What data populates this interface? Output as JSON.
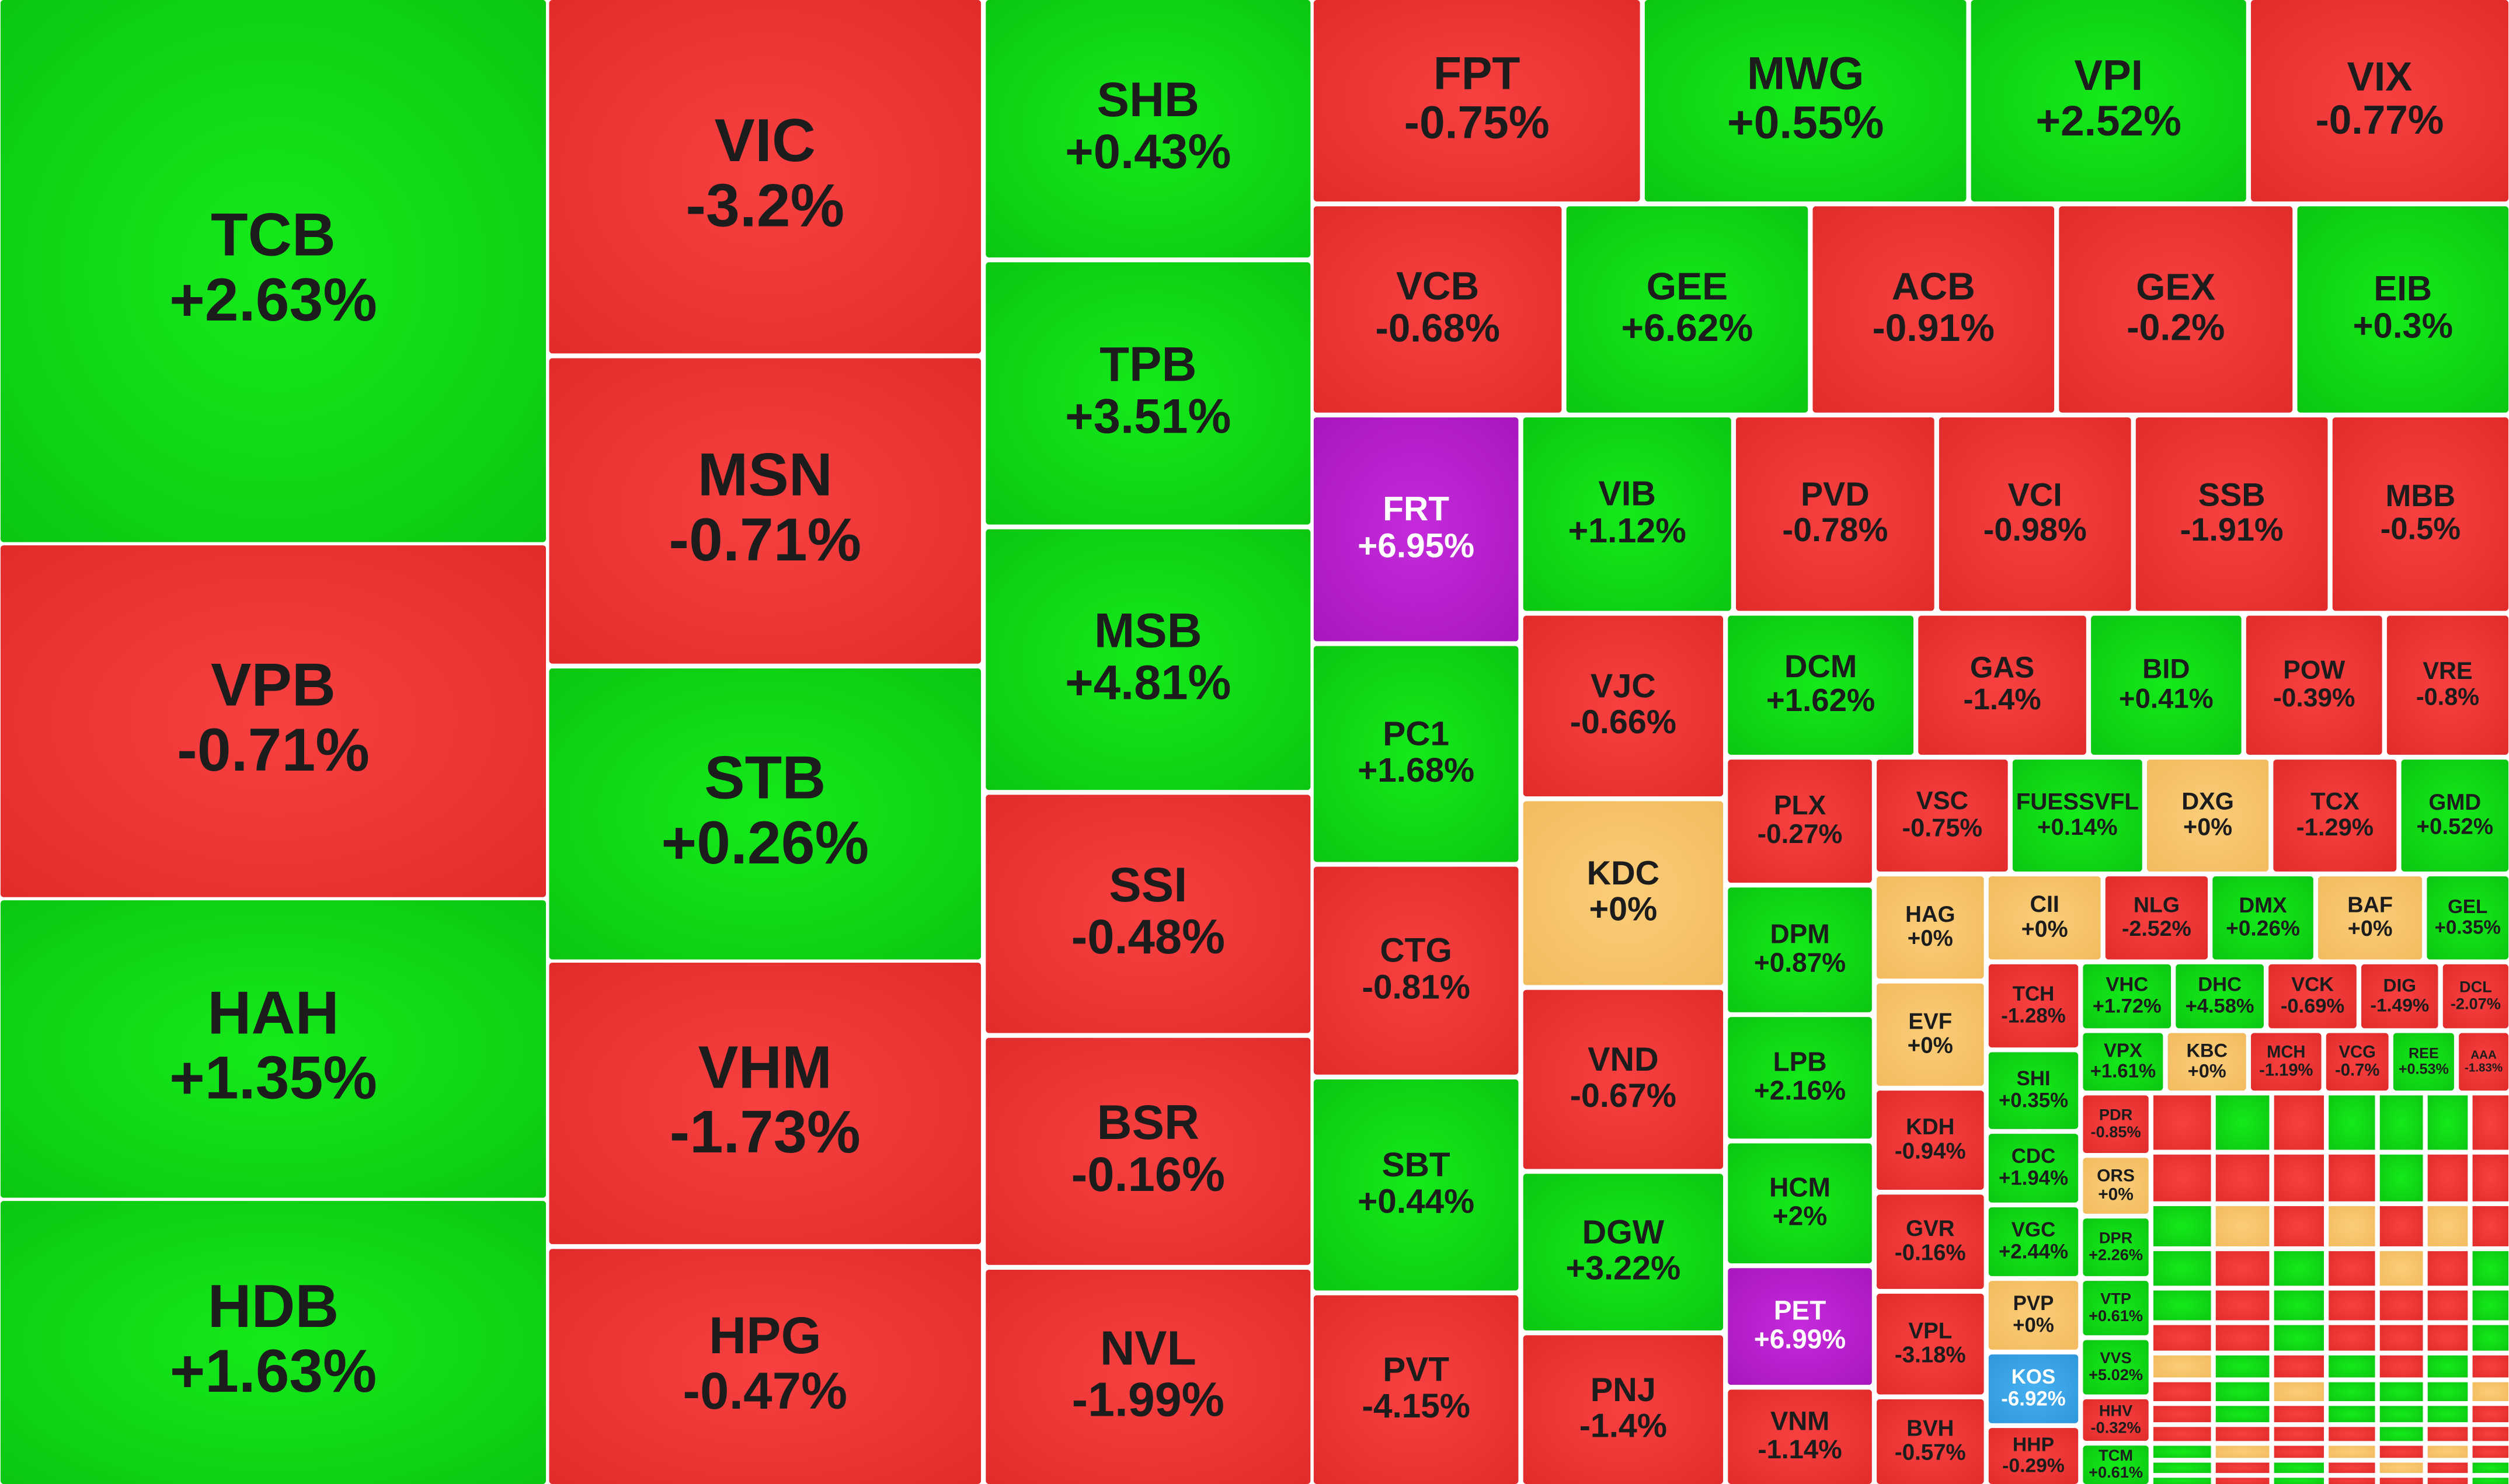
{
  "tiles": [
    {
      "ticker": "TCB",
      "change": "+2.63%",
      "color": "green"
    },
    {
      "ticker": "VPB",
      "change": "-0.71%",
      "color": "red"
    },
    {
      "ticker": "HAH",
      "change": "+1.35%",
      "color": "green"
    },
    {
      "ticker": "HDB",
      "change": "+1.63%",
      "color": "green"
    },
    {
      "ticker": "VIC",
      "change": "-3.2%",
      "color": "red"
    },
    {
      "ticker": "MSN",
      "change": "-0.71%",
      "color": "red"
    },
    {
      "ticker": "STB",
      "change": "+0.26%",
      "color": "green"
    },
    {
      "ticker": "VHM",
      "change": "-1.73%",
      "color": "red"
    },
    {
      "ticker": "HPG",
      "change": "-0.47%",
      "color": "red"
    },
    {
      "ticker": "SHB",
      "change": "+0.43%",
      "color": "green"
    },
    {
      "ticker": "TPB",
      "change": "+3.51%",
      "color": "green"
    },
    {
      "ticker": "MSB",
      "change": "+4.81%",
      "color": "green"
    },
    {
      "ticker": "SSI",
      "change": "-0.48%",
      "color": "red"
    },
    {
      "ticker": "BSR",
      "change": "-0.16%",
      "color": "red"
    },
    {
      "ticker": "NVL",
      "change": "-1.99%",
      "color": "red"
    },
    {
      "ticker": "FPT",
      "change": "-0.75%",
      "color": "red"
    },
    {
      "ticker": "MWG",
      "change": "+0.55%",
      "color": "green"
    },
    {
      "ticker": "VPI",
      "change": "+2.52%",
      "color": "green"
    },
    {
      "ticker": "VIX",
      "change": "-0.77%",
      "color": "red"
    },
    {
      "ticker": "VCB",
      "change": "-0.68%",
      "color": "red"
    },
    {
      "ticker": "GEE",
      "change": "+6.62%",
      "color": "green"
    },
    {
      "ticker": "ACB",
      "change": "-0.91%",
      "color": "red"
    },
    {
      "ticker": "GEX",
      "change": "-0.2%",
      "color": "red"
    },
    {
      "ticker": "EIB",
      "change": "+0.3%",
      "color": "green"
    },
    {
      "ticker": "FRT",
      "change": "+6.95%",
      "color": "purple"
    },
    {
      "ticker": "VIB",
      "change": "+1.12%",
      "color": "green"
    },
    {
      "ticker": "PVD",
      "change": "-0.78%",
      "color": "red"
    },
    {
      "ticker": "VCI",
      "change": "-0.98%",
      "color": "red"
    },
    {
      "ticker": "SSB",
      "change": "-1.91%",
      "color": "red"
    },
    {
      "ticker": "MBB",
      "change": "-0.5%",
      "color": "red"
    },
    {
      "ticker": "PC1",
      "change": "+1.68%",
      "color": "green"
    },
    {
      "ticker": "CTG",
      "change": "-0.81%",
      "color": "red"
    },
    {
      "ticker": "SBT",
      "change": "+0.44%",
      "color": "green"
    },
    {
      "ticker": "PVT",
      "change": "-4.15%",
      "color": "red"
    },
    {
      "ticker": "VJC",
      "change": "-0.66%",
      "color": "red"
    },
    {
      "ticker": "KDC",
      "change": "+0%",
      "color": "orange"
    },
    {
      "ticker": "VND",
      "change": "-0.67%",
      "color": "red"
    },
    {
      "ticker": "DGW",
      "change": "+3.22%",
      "color": "green"
    },
    {
      "ticker": "PNJ",
      "change": "-1.4%",
      "color": "red"
    },
    {
      "ticker": "DCM",
      "change": "+1.62%",
      "color": "green"
    },
    {
      "ticker": "GAS",
      "change": "-1.4%",
      "color": "red"
    },
    {
      "ticker": "BID",
      "change": "+0.41%",
      "color": "green"
    },
    {
      "ticker": "POW",
      "change": "-0.39%",
      "color": "red"
    },
    {
      "ticker": "VRE",
      "change": "-0.8%",
      "color": "red"
    },
    {
      "ticker": "PLX",
      "change": "-0.27%",
      "color": "red"
    },
    {
      "ticker": "DPM",
      "change": "+0.87%",
      "color": "green"
    },
    {
      "ticker": "LPB",
      "change": "+2.16%",
      "color": "green"
    },
    {
      "ticker": "HCM",
      "change": "+2%",
      "color": "green"
    },
    {
      "ticker": "PET",
      "change": "+6.99%",
      "color": "purple"
    },
    {
      "ticker": "VNM",
      "change": "-1.14%",
      "color": "red"
    },
    {
      "ticker": "VSC",
      "change": "-0.75%",
      "color": "red"
    },
    {
      "ticker": "FUESSVFL",
      "change": "+0.14%",
      "color": "green"
    },
    {
      "ticker": "DXG",
      "change": "+0%",
      "color": "orange"
    },
    {
      "ticker": "TCX",
      "change": "-1.29%",
      "color": "red"
    },
    {
      "ticker": "GMD",
      "change": "+0.52%",
      "color": "green"
    },
    {
      "ticker": "HAG",
      "change": "+0%",
      "color": "orange"
    },
    {
      "ticker": "EVF",
      "change": "+0%",
      "color": "orange"
    },
    {
      "ticker": "KDH",
      "change": "-0.94%",
      "color": "red"
    },
    {
      "ticker": "GVR",
      "change": "-0.16%",
      "color": "red"
    },
    {
      "ticker": "VPL",
      "change": "-3.18%",
      "color": "red"
    },
    {
      "ticker": "BVH",
      "change": "-0.57%",
      "color": "red"
    },
    {
      "ticker": "CII",
      "change": "+0%",
      "color": "orange"
    },
    {
      "ticker": "NLG",
      "change": "-2.52%",
      "color": "red"
    },
    {
      "ticker": "DMX",
      "change": "+0.26%",
      "color": "green"
    },
    {
      "ticker": "BAF",
      "change": "+0%",
      "color": "orange"
    },
    {
      "ticker": "GEL",
      "change": "+0.35%",
      "color": "green"
    },
    {
      "ticker": "TCH",
      "change": "-1.28%",
      "color": "red"
    },
    {
      "ticker": "SHI",
      "change": "+0.35%",
      "color": "green"
    },
    {
      "ticker": "CDC",
      "change": "+1.94%",
      "color": "green"
    },
    {
      "ticker": "VGC",
      "change": "+2.44%",
      "color": "green"
    },
    {
      "ticker": "PVP",
      "change": "+0%",
      "color": "orange"
    },
    {
      "ticker": "KOS",
      "change": "-6.92%",
      "color": "blue"
    },
    {
      "ticker": "HHP",
      "change": "-0.29%",
      "color": "red"
    },
    {
      "ticker": "VHC",
      "change": "+1.72%",
      "color": "green"
    },
    {
      "ticker": "DHC",
      "change": "+4.58%",
      "color": "green"
    },
    {
      "ticker": "VCK",
      "change": "-0.69%",
      "color": "red"
    },
    {
      "ticker": "DIG",
      "change": "-1.49%",
      "color": "red"
    },
    {
      "ticker": "DCL",
      "change": "-2.07%",
      "color": "red"
    },
    {
      "ticker": "VPX",
      "change": "+1.61%",
      "color": "green"
    },
    {
      "ticker": "KBC",
      "change": "+0%",
      "color": "orange"
    },
    {
      "ticker": "MCH",
      "change": "-1.19%",
      "color": "red"
    },
    {
      "ticker": "VCG",
      "change": "-0.7%",
      "color": "red"
    },
    {
      "ticker": "REE",
      "change": "+0.53%",
      "color": "green"
    },
    {
      "ticker": "AAA",
      "change": "-1.83%",
      "color": "red"
    },
    {
      "ticker": "PDR",
      "change": "-0.85%",
      "color": "red"
    },
    {
      "ticker": "ORS",
      "change": "+0%",
      "color": "orange"
    },
    {
      "ticker": "DPR",
      "change": "+2.26%",
      "color": "green"
    },
    {
      "ticker": "VTP",
      "change": "+0.61%",
      "color": "green"
    },
    {
      "ticker": "VVS",
      "change": "+5.02%",
      "color": "green"
    },
    {
      "ticker": "HHV",
      "change": "-0.32%",
      "color": "red"
    },
    {
      "ticker": "TCM",
      "change": "+0.61%",
      "color": "green"
    }
  ]
}
